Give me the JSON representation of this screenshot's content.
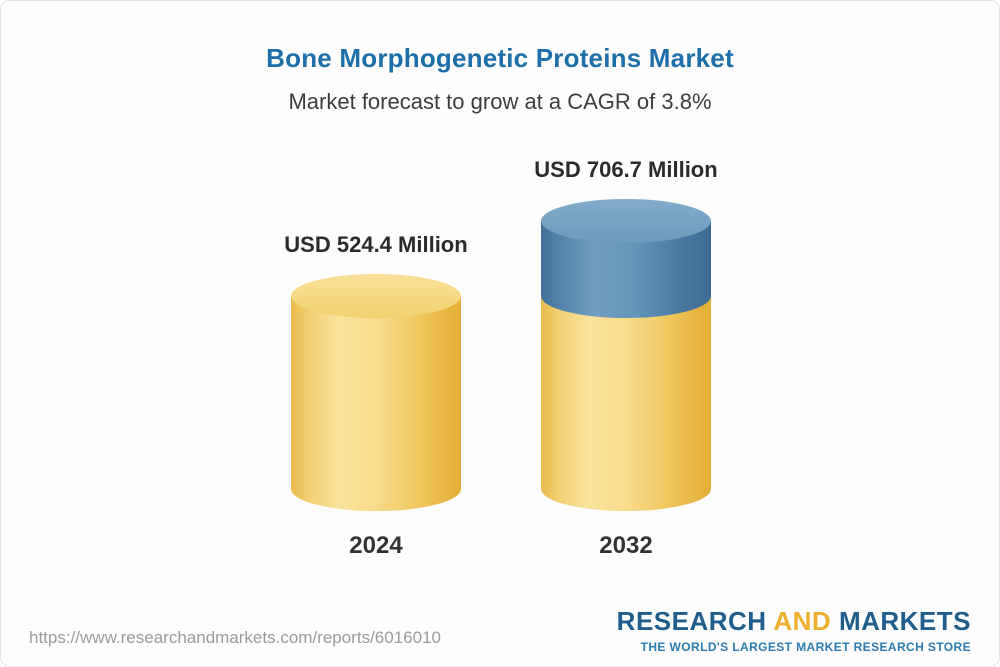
{
  "header": {
    "title": "Bone Morphogenetic Proteins Market",
    "subtitle": "Market forecast to grow at a CAGR of 3.8%"
  },
  "chart_data": {
    "type": "bar",
    "variant": "3d-cylinder",
    "title": "Bone Morphogenetic Proteins Market",
    "subtitle": "Market forecast to grow at a CAGR of 3.8%",
    "categories": [
      "2024",
      "2032"
    ],
    "values": [
      524.4,
      706.7
    ],
    "unit": "USD Million",
    "value_labels": [
      "USD 524.4 Million",
      "USD 706.7 Million"
    ],
    "cagr_percent": 3.8,
    "ylim": [
      0,
      706.7
    ],
    "grid": false,
    "legend": false,
    "colors": {
      "base_segment": "#f0c75f",
      "growth_segment": "#4e81a8",
      "title_text": "#1d6fa9",
      "label_text": "#2b2b2b"
    },
    "notes": "2032 bar shows base value in yellow with growth delta (182.3) as blue top segment"
  },
  "footer": {
    "url": "https://www.researchandmarkets.com/reports/6016010",
    "logo": {
      "part1": "RESEARCH",
      "part2": "AND",
      "part3": "MARKETS",
      "tagline": "THE WORLD'S LARGEST MARKET RESEARCH STORE"
    }
  }
}
